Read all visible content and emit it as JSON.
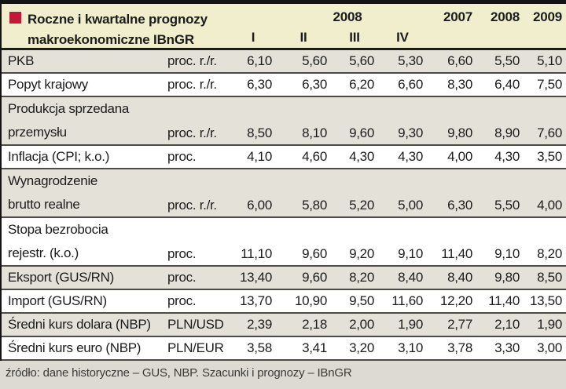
{
  "page": {
    "title_line1": "Roczne i kwartalne prognozy",
    "title_line2": "makroekonomiczne IBnGR",
    "source_note": "źródło: dane historyczne – GUS, NBP. Szacunki i prognozy – IBnGR"
  },
  "header": {
    "quarter_year_label": "2008",
    "quarters": [
      "I",
      "II",
      "III",
      "IV"
    ],
    "year_columns": [
      "2007",
      "2008",
      "2009"
    ]
  },
  "rows": [
    {
      "label": "PKB",
      "unit": "proc. r./r.",
      "two_line": false,
      "values": [
        "6,10",
        "5,60",
        "5,60",
        "5,30",
        "6,60",
        "5,50",
        "5,10"
      ]
    },
    {
      "label": "Popyt krajowy",
      "unit": "proc. r./r.",
      "two_line": false,
      "values": [
        "6,30",
        "6,30",
        "6,20",
        "6,60",
        "8,30",
        "6,40",
        "7,50"
      ]
    },
    {
      "label": "Produkcja sprzedana\nprzemysłu",
      "unit": "proc. r./r.",
      "two_line": true,
      "values": [
        "8,50",
        "8,10",
        "9,60",
        "9,30",
        "9,80",
        "8,90",
        "7,60"
      ]
    },
    {
      "label": "Inflacja (CPI; k.o.)",
      "unit": "proc.",
      "two_line": false,
      "values": [
        "4,10",
        "4,60",
        "4,30",
        "4,30",
        "4,00",
        "4,30",
        "3,50"
      ]
    },
    {
      "label": "Wynagrodzenie\nbrutto realne",
      "unit": "proc. r./r.",
      "two_line": true,
      "values": [
        "6,00",
        "5,80",
        "5,20",
        "5,00",
        "6,30",
        "5,50",
        "4,00"
      ]
    },
    {
      "label": "Stopa bezrobocia\nrejestr. (k.o.)",
      "unit": "proc.",
      "two_line": true,
      "values": [
        "11,10",
        "9,60",
        "9,20",
        "9,10",
        "11,40",
        "9,10",
        "8,20"
      ]
    },
    {
      "label": "Eksport (GUS/RN)",
      "unit": "proc.",
      "two_line": false,
      "values": [
        "13,40",
        "9,60",
        "8,20",
        "8,40",
        "8,40",
        "9,80",
        "8,50"
      ]
    },
    {
      "label": "Import (GUS/RN)",
      "unit": "proc.",
      "two_line": false,
      "values": [
        "13,70",
        "10,90",
        "9,50",
        "11,60",
        "12,20",
        "11,40",
        "13,50"
      ]
    },
    {
      "label": "Średni kurs dolara (NBP)",
      "unit": "PLN/USD",
      "two_line": false,
      "values": [
        "2,39",
        "2,18",
        "2,00",
        "1,90",
        "2,77",
        "2,10",
        "1,90"
      ]
    },
    {
      "label": "Średni kurs euro (NBP)",
      "unit": "PLN/EUR",
      "two_line": false,
      "values": [
        "3,58",
        "3,41",
        "3,20",
        "3,10",
        "3,78",
        "3,30",
        "3,00"
      ]
    }
  ],
  "colors": {
    "accent_red": "#c01a38",
    "header_bg": "#f0eecd",
    "row_alt_bg": "#e3e1d8",
    "row_bg": "#ffffff",
    "footer_bg": "#dcdad2",
    "frame": "#141414"
  }
}
